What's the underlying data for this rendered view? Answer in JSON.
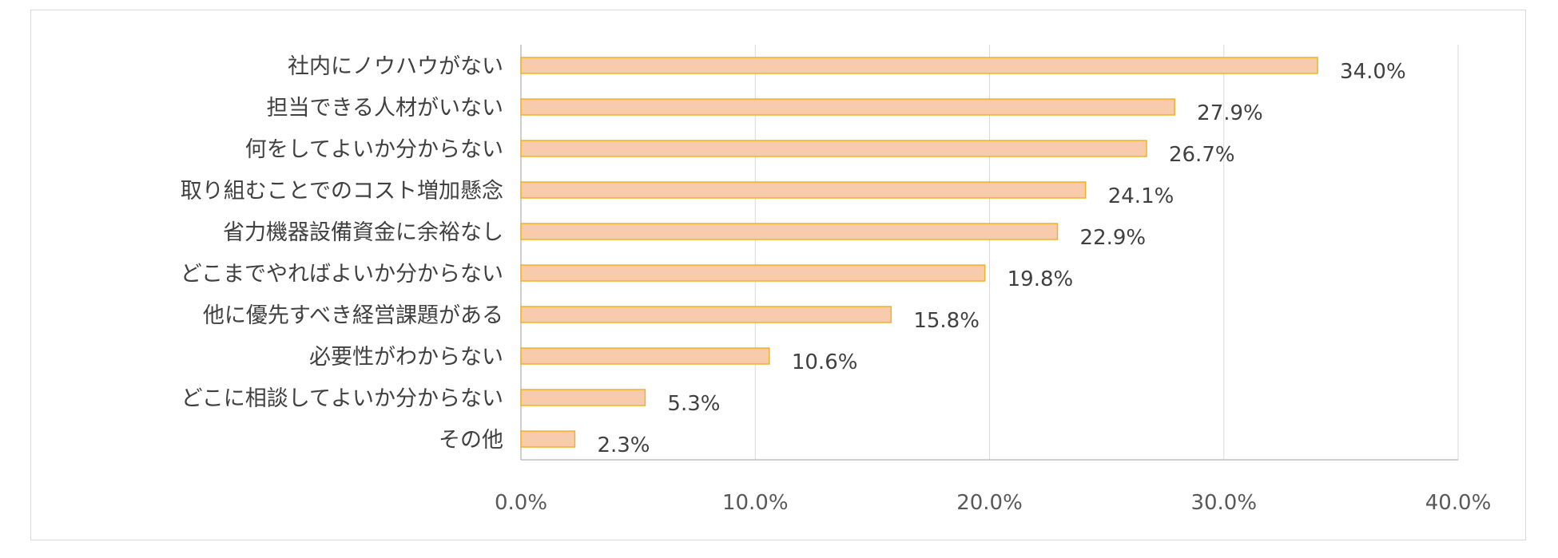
{
  "chart_data": {
    "type": "bar",
    "orientation": "horizontal",
    "categories": [
      "社内にノウハウがない",
      "担当できる人材がいない",
      "何をしてよいか分からない",
      "取り組むことでのコスト増加懸念",
      "省力機器設備資金に余裕なし",
      "どこまでやればよいか分からない",
      "他に優先すべき経営課題がある",
      "必要性がわからない",
      "どこに相談してよいか分からない",
      "その他"
    ],
    "values": [
      34.0,
      27.9,
      26.7,
      24.1,
      22.9,
      19.8,
      15.8,
      10.6,
      5.3,
      2.3
    ],
    "value_labels": [
      "34.0%",
      "27.9%",
      "26.7%",
      "24.1%",
      "22.9%",
      "19.8%",
      "15.8%",
      "10.6%",
      "5.3%",
      "2.3%"
    ],
    "xlim": [
      0,
      40
    ],
    "xticks": [
      0,
      10,
      20,
      30,
      40
    ],
    "xtick_labels": [
      "0.0%",
      "10.0%",
      "20.0%",
      "30.0%",
      "40.0%"
    ],
    "grid": "vertical",
    "legend": "none",
    "colors": {
      "bar_fill": "#f8cbad",
      "bar_stroke": "#f0b323",
      "grid": "#d9d9d9",
      "axis": "#bfbfbf",
      "text": "#404040"
    }
  }
}
